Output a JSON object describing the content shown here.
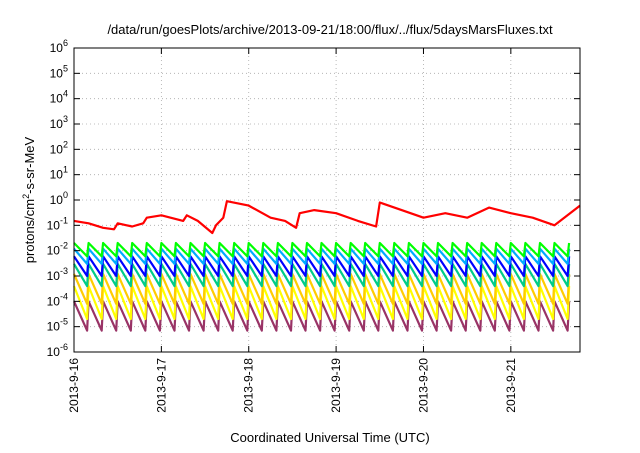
{
  "chart_data": {
    "type": "line",
    "title": "/data/run/goesPlots/archive/2013-09-21/18:00/flux/../flux/5daysMarsFluxes.txt",
    "xlabel": "Coordinated Universal Time (UTC)",
    "ylabel": "protons/cm²-s-sr-MeV",
    "yscale": "log",
    "ylim": [
      1e-06,
      1000000.0
    ],
    "xlim": [
      "2013-9-16",
      "2013-9-21 19:00"
    ],
    "x_ticks": [
      "2013-9-16",
      "2013-9-17",
      "2013-9-18",
      "2013-9-19",
      "2013-9-20",
      "2013-9-21"
    ],
    "y_ticks": [
      {
        "value": 1e-06,
        "base": "10",
        "exp": "-6"
      },
      {
        "value": 1e-05,
        "base": "10",
        "exp": "-5"
      },
      {
        "value": 0.0001,
        "base": "10",
        "exp": "-4"
      },
      {
        "value": 0.001,
        "base": "10",
        "exp": "-3"
      },
      {
        "value": 0.01,
        "base": "10",
        "exp": "-2"
      },
      {
        "value": 0.1,
        "base": "10",
        "exp": "-1"
      },
      {
        "value": 1,
        "base": "10",
        "exp": "0"
      },
      {
        "value": 10.0,
        "base": "10",
        "exp": "1"
      },
      {
        "value": 100.0,
        "base": "10",
        "exp": "2"
      },
      {
        "value": 1000.0,
        "base": "10",
        "exp": "3"
      },
      {
        "value": 10000.0,
        "base": "10",
        "exp": "4"
      },
      {
        "value": 100000.0,
        "base": "10",
        "exp": "5"
      },
      {
        "value": 1000000.0,
        "base": "10",
        "exp": "6"
      }
    ],
    "grid": true,
    "series": [
      {
        "color": "#ff0000",
        "x": [
          "2013-9-16 00:00",
          "2013-9-16 04:00",
          "2013-9-16 08:00",
          "2013-9-16 11:00",
          "2013-9-16 12:00",
          "2013-9-16 16:00",
          "2013-9-16 19:00",
          "2013-9-16 20:00",
          "2013-9-17 00:00",
          "2013-9-17 06:00",
          "2013-9-17 07:00",
          "2013-9-17 10:00",
          "2013-9-17 14:00",
          "2013-9-17 15:00",
          "2013-9-17 17:00",
          "2013-9-17 18:00",
          "2013-9-18 00:00",
          "2013-9-18 06:00",
          "2013-9-18 10:00",
          "2013-9-18 13:00",
          "2013-9-18 14:00",
          "2013-9-18 18:00",
          "2013-9-19 00:00",
          "2013-9-19 06:00",
          "2013-9-19 11:00",
          "2013-9-19 12:00",
          "2013-9-19 18:00",
          "2013-9-20 00:00",
          "2013-9-20 06:00",
          "2013-9-20 12:00",
          "2013-9-20 18:00",
          "2013-9-21 00:00",
          "2013-9-21 06:00",
          "2013-9-21 12:00",
          "2013-9-21 19:00"
        ],
        "y": [
          0.15,
          0.12,
          0.08,
          0.07,
          0.12,
          0.09,
          0.12,
          0.2,
          0.25,
          0.15,
          0.25,
          0.15,
          0.05,
          0.1,
          0.2,
          0.9,
          0.6,
          0.2,
          0.15,
          0.08,
          0.3,
          0.4,
          0.3,
          0.15,
          0.09,
          0.8,
          0.4,
          0.2,
          0.3,
          0.2,
          0.5,
          0.3,
          0.2,
          0.1,
          0.6
        ]
      },
      {
        "color": "#00ff00",
        "x": [
          "2013-9-16",
          "2013-9-21 19:00"
        ],
        "y_peak": 0.02,
        "y_trough": 0.006,
        "period_hours": 4
      },
      {
        "color": "#00aaff",
        "x": [
          "2013-9-16",
          "2013-9-21 19:00"
        ],
        "y_peak": 0.012,
        "y_trough": 0.003,
        "period_hours": 4
      },
      {
        "color": "#0000ff",
        "x": [
          "2013-9-16",
          "2013-9-21 19:00"
        ],
        "y_peak": 0.006,
        "y_trough": 0.001,
        "period_hours": 4
      },
      {
        "color": "#00cc88",
        "x": [
          "2013-9-16",
          "2013-9-21 19:00"
        ],
        "y_peak": 0.003,
        "y_trough": 0.0004,
        "period_hours": 4
      },
      {
        "color": "#ffcc00",
        "x": [
          "2013-9-16",
          "2013-9-21 19:00"
        ],
        "y_peak": 0.0012,
        "y_trough": 8e-05,
        "period_hours": 4
      },
      {
        "color": "#ffff00",
        "x": [
          "2013-9-16",
          "2013-9-21 19:00"
        ],
        "y_peak": 0.0004,
        "y_trough": 2e-05,
        "period_hours": 4
      },
      {
        "color": "#993366",
        "x": [
          "2013-9-16",
          "2013-9-21 19:00"
        ],
        "y_peak": 0.0001,
        "y_trough": 7e-06,
        "period_hours": 4
      }
    ]
  }
}
